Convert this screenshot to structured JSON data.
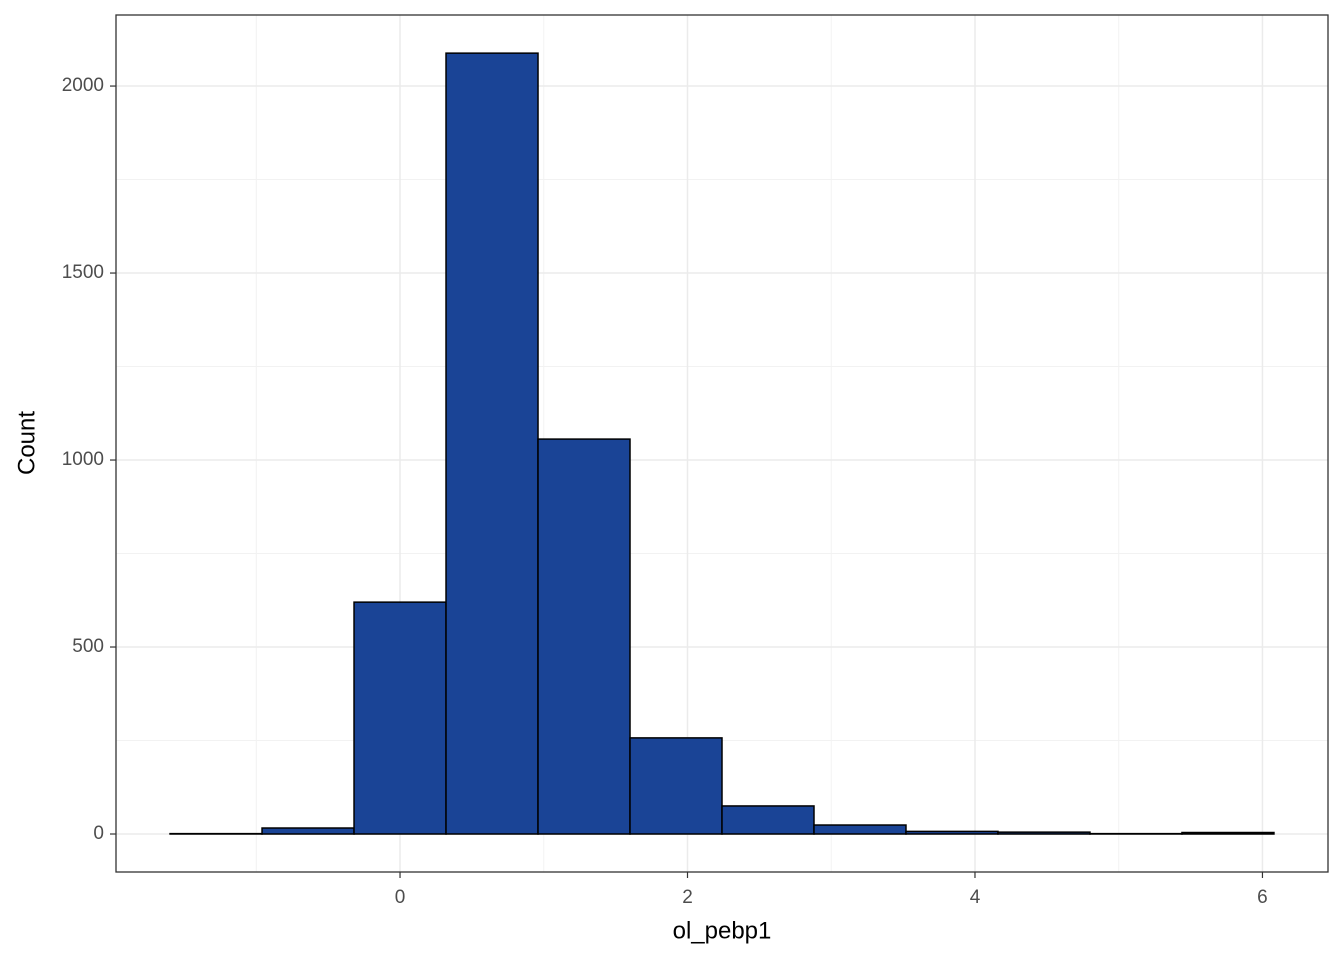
{
  "chart_data": {
    "type": "histogram",
    "x_label": "ol_pebp1",
    "y_label": "Count",
    "bins": [
      -1.6,
      -0.96,
      -0.32,
      0.32,
      0.96,
      1.6,
      2.24,
      2.88,
      3.52,
      4.16,
      4.8,
      5.44,
      6.08
    ],
    "values": [
      1,
      16,
      620,
      2088,
      1056,
      257,
      75,
      24,
      7,
      5,
      1,
      4
    ],
    "color": "#1a4496",
    "xlim": [
      -1.976,
      6.456
    ],
    "xticks": [
      0,
      2,
      4,
      6
    ],
    "ylim": [
      -101.6,
      2190
    ],
    "yticks": [
      0,
      500,
      1000,
      1500,
      2000
    ],
    "grid": true
  }
}
